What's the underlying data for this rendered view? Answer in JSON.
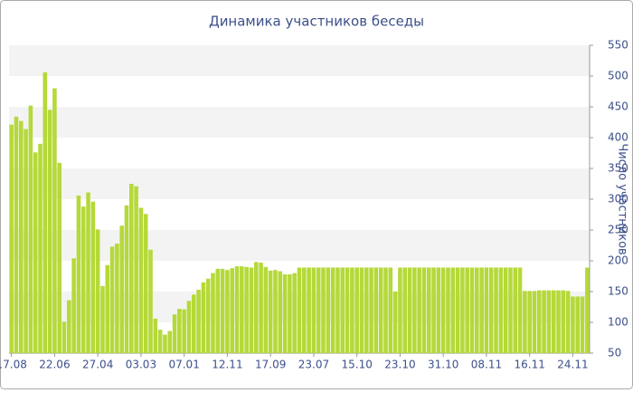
{
  "chart_data": {
    "type": "bar",
    "title": "Динамика участников беседы",
    "y_label": "Число участников",
    "categories": [
      "17.08",
      null,
      null,
      null,
      null,
      null,
      null,
      null,
      null,
      "22.06",
      null,
      null,
      null,
      null,
      null,
      null,
      null,
      null,
      "27.04",
      null,
      null,
      null,
      null,
      null,
      null,
      null,
      null,
      "03.03",
      null,
      null,
      null,
      null,
      null,
      null,
      null,
      null,
      "07.01",
      null,
      null,
      null,
      null,
      null,
      null,
      null,
      null,
      "12.11",
      null,
      null,
      null,
      null,
      null,
      null,
      null,
      null,
      "17.09",
      null,
      null,
      null,
      null,
      null,
      null,
      null,
      null,
      "23.07",
      null,
      null,
      null,
      null,
      null,
      null,
      null,
      null,
      "15.10",
      null,
      null,
      null,
      null,
      null,
      null,
      null,
      null,
      "23.10",
      null,
      null,
      null,
      null,
      null,
      null,
      null,
      null,
      "31.10",
      null,
      null,
      null,
      null,
      null,
      null,
      null,
      null,
      "08.11",
      null,
      null,
      null,
      null,
      null,
      null,
      null,
      null,
      "16.11",
      null,
      null,
      null,
      null,
      null,
      null,
      null,
      null,
      "24.11",
      null,
      null,
      null
    ],
    "values": [
      421,
      434,
      427,
      414,
      452,
      376,
      390,
      506,
      445,
      480,
      359,
      101,
      136,
      204,
      306,
      288,
      311,
      296,
      251,
      159,
      193,
      223,
      228,
      257,
      290,
      325,
      321,
      286,
      276,
      218,
      106,
      88,
      80,
      86,
      113,
      122,
      121,
      135,
      145,
      153,
      165,
      171,
      180,
      187,
      187,
      185,
      188,
      191,
      191,
      190,
      189,
      198,
      197,
      190,
      184,
      185,
      183,
      178,
      178,
      180,
      189,
      189,
      189,
      189,
      189,
      189,
      189,
      189,
      189,
      189,
      189,
      189,
      189,
      189,
      189,
      189,
      189,
      189,
      189,
      189,
      150,
      189,
      189,
      189,
      189,
      189,
      189,
      189,
      189,
      189,
      189,
      189,
      189,
      189,
      189,
      189,
      189,
      189,
      189,
      189,
      189,
      189,
      189,
      189,
      189,
      189,
      189,
      151,
      151,
      151,
      152,
      152,
      152,
      152,
      152,
      152,
      151,
      142,
      142,
      142,
      189
    ],
    "color": "#b5d939",
    "ylim": [
      50,
      550
    ],
    "yticks": [
      50,
      100,
      150,
      200,
      250,
      300,
      350,
      400,
      450,
      500,
      550
    ],
    "grid": "bands",
    "y_axis_side": "right"
  }
}
